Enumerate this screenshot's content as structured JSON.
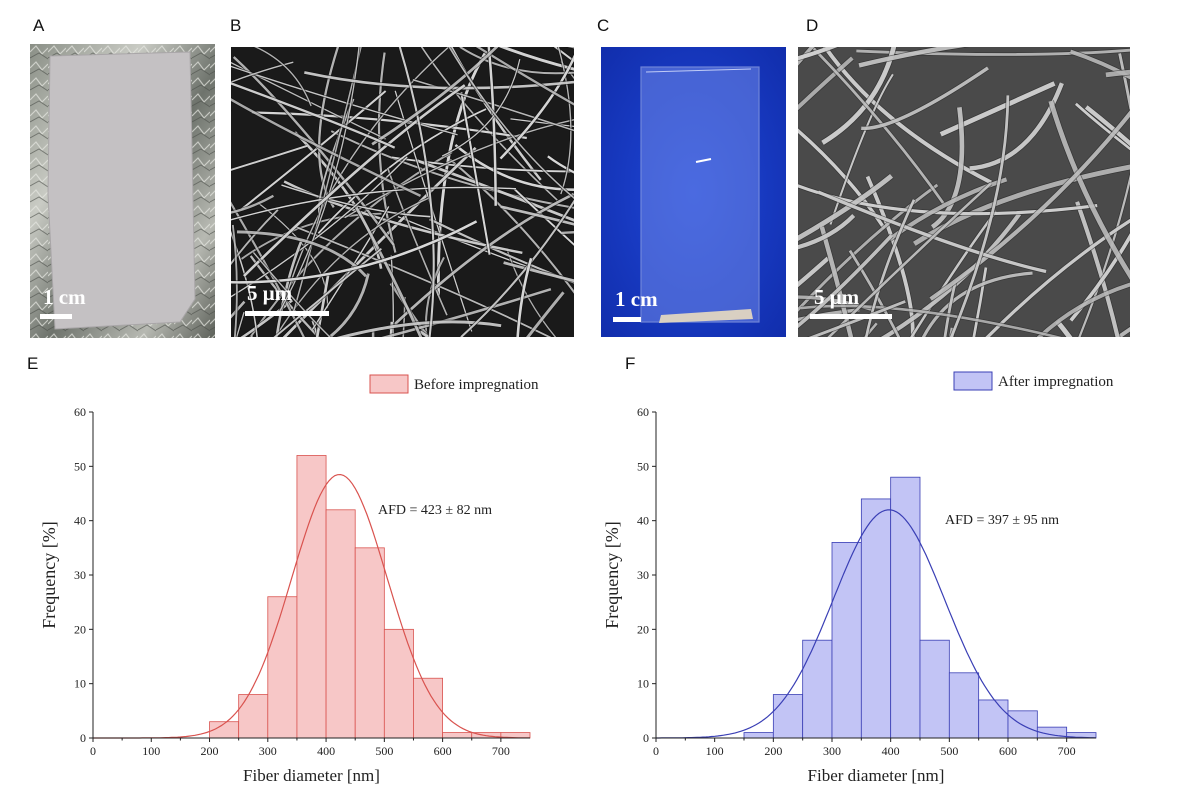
{
  "panels": {
    "a": {
      "label": "A",
      "scale": "1 cm"
    },
    "b": {
      "label": "B",
      "scale": "5 μm"
    },
    "c": {
      "label": "C",
      "scale": "1 cm"
    },
    "d": {
      "label": "D",
      "scale": "5 μm"
    },
    "e": {
      "label": "E"
    },
    "f": {
      "label": "F"
    }
  },
  "chart_data": [
    {
      "type": "bar",
      "panel": "E",
      "legend": "Before impregnation",
      "annotation": "AFD = 423 ± 82 nm",
      "xlabel": "Fiber diameter [nm]",
      "ylabel": "Frequency [%]",
      "xlim": [
        0,
        750
      ],
      "ylim": [
        0,
        60
      ],
      "xticks": [
        0,
        100,
        200,
        300,
        400,
        500,
        600,
        700
      ],
      "yticks": [
        0,
        10,
        20,
        30,
        40,
        50,
        60
      ],
      "bin_width": 50,
      "bin_starts": [
        150,
        200,
        250,
        300,
        350,
        400,
        450,
        500,
        550,
        600,
        650,
        700
      ],
      "values": [
        0,
        3,
        8,
        26,
        52,
        42,
        35,
        20,
        11,
        1,
        1,
        1
      ],
      "fit": {
        "mean": 423,
        "sd": 82,
        "peak": 48.5
      },
      "fill": "#f7c7c7",
      "edge": "#d9534f",
      "line": "#d9534f",
      "legend_position": "top-right"
    },
    {
      "type": "bar",
      "panel": "F",
      "legend": "After impregnation",
      "annotation": "AFD = 397 ± 95 nm",
      "xlabel": "Fiber diameter [nm]",
      "ylabel": "Frequency [%]",
      "xlim": [
        0,
        750
      ],
      "ylim": [
        0,
        60
      ],
      "xticks": [
        0,
        100,
        200,
        300,
        400,
        500,
        600,
        700
      ],
      "yticks": [
        0,
        10,
        20,
        30,
        40,
        50,
        60
      ],
      "bin_width": 50,
      "bin_starts": [
        150,
        200,
        250,
        300,
        350,
        400,
        450,
        500,
        550,
        600,
        650,
        700
      ],
      "values": [
        1,
        8,
        18,
        36,
        44,
        48,
        18,
        12,
        7,
        5,
        2,
        1
      ],
      "fit": {
        "mean": 397,
        "sd": 95,
        "peak": 42
      },
      "fill": "#c2c4f5",
      "edge": "#3a3fb5",
      "line": "#3a3fb5",
      "legend_position": "top-right"
    }
  ]
}
